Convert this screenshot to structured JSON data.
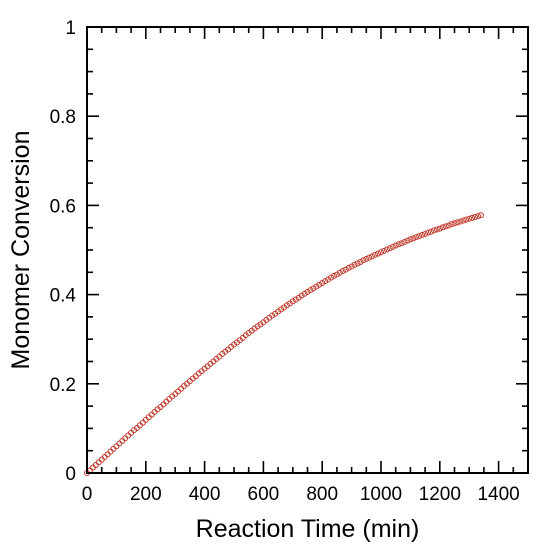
{
  "chart_data": {
    "type": "scatter",
    "xlabel": "Reaction Time (min)",
    "ylabel": "Monomer Conversion",
    "xlim": [
      0,
      1500
    ],
    "ylim": [
      0,
      1
    ],
    "x_ticks": [
      0,
      200,
      400,
      600,
      800,
      1000,
      1200,
      1400
    ],
    "y_ticks": [
      0,
      0.2,
      0.4,
      0.6,
      0.8,
      1
    ],
    "x_tick_labels": [
      "0",
      "200",
      "400",
      "600",
      "800",
      "1000",
      "1200",
      "1400"
    ],
    "y_tick_labels": [
      "0",
      "0.2",
      "0.4",
      "0.6",
      "0.8",
      "1"
    ],
    "grid": false,
    "marker": "open-circle",
    "marker_color": "#c0392b",
    "series": [
      {
        "x": [
          0,
          10,
          20,
          30,
          40,
          50,
          60,
          70,
          80,
          90,
          100,
          110,
          120,
          130,
          140,
          150,
          160,
          170,
          180,
          190,
          200,
          210,
          220,
          230,
          240,
          250,
          260,
          270,
          280,
          290,
          300,
          310,
          320,
          330,
          340,
          350,
          360,
          370,
          380,
          390,
          400,
          410,
          420,
          430,
          440,
          450,
          460,
          470,
          480,
          490,
          500,
          510,
          520,
          530,
          540,
          550,
          560,
          570,
          580,
          590,
          600,
          610,
          620,
          630,
          640,
          650,
          660,
          670,
          680,
          690,
          700,
          710,
          720,
          730,
          740,
          750,
          760,
          770,
          780,
          790,
          800,
          810,
          820,
          830,
          840,
          850,
          860,
          870,
          880,
          890,
          900,
          910,
          920,
          930,
          940,
          950,
          960,
          970,
          980,
          990,
          1000,
          1010,
          1020,
          1030,
          1040,
          1050,
          1060,
          1070,
          1080,
          1090,
          1100,
          1110,
          1120,
          1130,
          1140,
          1150,
          1160,
          1170,
          1180,
          1190,
          1200,
          1210,
          1220,
          1230,
          1240,
          1250,
          1260,
          1270,
          1280,
          1290,
          1300,
          1310,
          1320,
          1330,
          1340
        ],
        "y": [
          0.0,
          0.006,
          0.012,
          0.018,
          0.024,
          0.03,
          0.036,
          0.042,
          0.048,
          0.054,
          0.06,
          0.066,
          0.072,
          0.078,
          0.084,
          0.09,
          0.096,
          0.101,
          0.107,
          0.113,
          0.119,
          0.125,
          0.131,
          0.137,
          0.143,
          0.148,
          0.154,
          0.16,
          0.166,
          0.172,
          0.177,
          0.183,
          0.189,
          0.195,
          0.2,
          0.206,
          0.212,
          0.217,
          0.223,
          0.228,
          0.234,
          0.239,
          0.245,
          0.25,
          0.256,
          0.261,
          0.267,
          0.272,
          0.277,
          0.283,
          0.288,
          0.293,
          0.298,
          0.303,
          0.309,
          0.314,
          0.319,
          0.324,
          0.329,
          0.333,
          0.338,
          0.343,
          0.348,
          0.353,
          0.357,
          0.362,
          0.367,
          0.371,
          0.376,
          0.38,
          0.385,
          0.389,
          0.393,
          0.398,
          0.402,
          0.406,
          0.41,
          0.414,
          0.418,
          0.422,
          0.426,
          0.43,
          0.434,
          0.438,
          0.442,
          0.445,
          0.449,
          0.453,
          0.456,
          0.46,
          0.463,
          0.467,
          0.47,
          0.473,
          0.477,
          0.48,
          0.483,
          0.486,
          0.489,
          0.492,
          0.495,
          0.498,
          0.501,
          0.504,
          0.507,
          0.51,
          0.513,
          0.515,
          0.518,
          0.521,
          0.524,
          0.526,
          0.529,
          0.531,
          0.534,
          0.536,
          0.539,
          0.541,
          0.544,
          0.546,
          0.548,
          0.551,
          0.553,
          0.555,
          0.558,
          0.56,
          0.562,
          0.564,
          0.566,
          0.568,
          0.57,
          0.572,
          0.574,
          0.576,
          0.578
        ]
      }
    ]
  }
}
